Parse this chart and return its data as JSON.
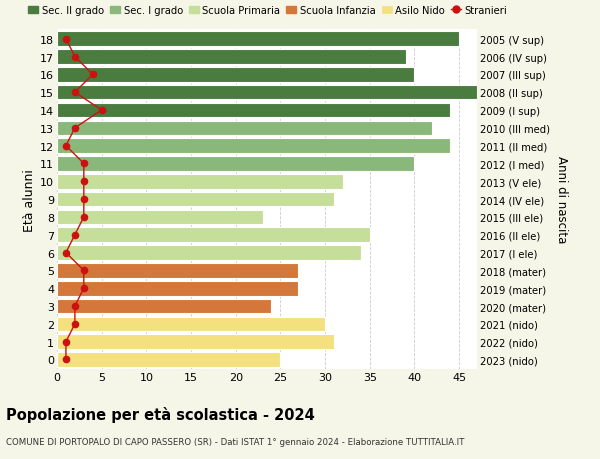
{
  "ages": [
    18,
    17,
    16,
    15,
    14,
    13,
    12,
    11,
    10,
    9,
    8,
    7,
    6,
    5,
    4,
    3,
    2,
    1,
    0
  ],
  "right_labels": [
    "2005 (V sup)",
    "2006 (IV sup)",
    "2007 (III sup)",
    "2008 (II sup)",
    "2009 (I sup)",
    "2010 (III med)",
    "2011 (II med)",
    "2012 (I med)",
    "2013 (V ele)",
    "2014 (IV ele)",
    "2015 (III ele)",
    "2016 (II ele)",
    "2017 (I ele)",
    "2018 (mater)",
    "2019 (mater)",
    "2020 (mater)",
    "2021 (nido)",
    "2022 (nido)",
    "2023 (nido)"
  ],
  "bar_values": [
    45,
    39,
    40,
    47,
    44,
    42,
    44,
    40,
    32,
    31,
    23,
    35,
    34,
    27,
    27,
    24,
    30,
    31,
    25
  ],
  "stranieri": [
    1,
    2,
    4,
    2,
    5,
    2,
    1,
    3,
    3,
    3,
    3,
    2,
    1,
    3,
    3,
    2,
    2,
    1,
    1
  ],
  "bar_colors": [
    "#4a7c3f",
    "#4a7c3f",
    "#4a7c3f",
    "#4a7c3f",
    "#4a7c3f",
    "#8ab87a",
    "#8ab87a",
    "#8ab87a",
    "#c5df9a",
    "#c5df9a",
    "#c5df9a",
    "#c5df9a",
    "#c5df9a",
    "#d4773a",
    "#d4773a",
    "#d4773a",
    "#f5e080",
    "#f5e080",
    "#f5e080"
  ],
  "color_sec2": "#4a7c3f",
  "color_sec1": "#8ab87a",
  "color_pri": "#c5df9a",
  "color_inf": "#d4773a",
  "color_nido": "#f5e080",
  "color_str": "#cc1111",
  "title": "Popolazione per età scolastica - 2024",
  "subtitle": "COMUNE DI PORTOPALO DI CAPO PASSERO (SR) - Dati ISTAT 1° gennaio 2024 - Elaborazione TUTTITALIA.IT",
  "ylabel": "Età alunni",
  "right_ylabel": "Anni di nascita",
  "xlim_max": 47,
  "xticks": [
    0,
    5,
    10,
    15,
    20,
    25,
    30,
    35,
    40,
    45
  ],
  "background": "#f5f5e8",
  "bar_background": "#ffffff",
  "grid_color": "#cccccc"
}
